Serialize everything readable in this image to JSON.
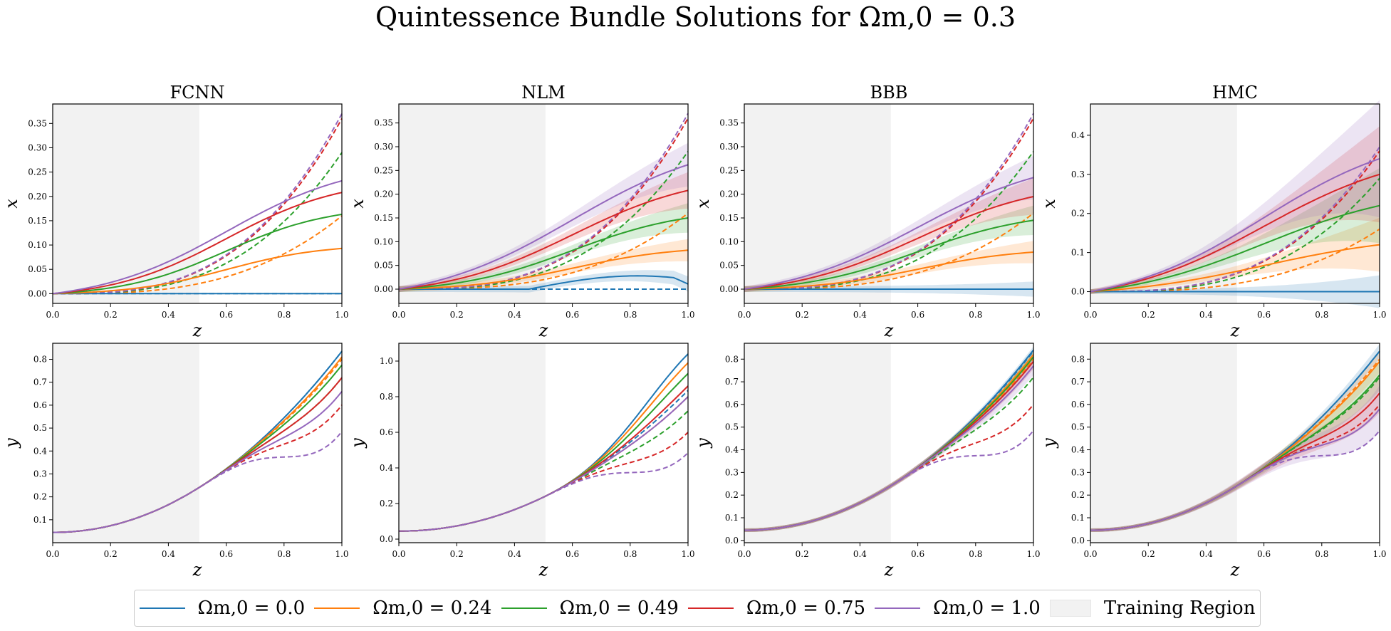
{
  "title": "Quintessence Bundle Solutions for Ω_{m,0} = 0.3",
  "title_display": "Quintessence Bundle Solutions for Ωm,0 = 0.3",
  "colors": {
    "s0": "#1f77b4",
    "s1": "#ff7f0e",
    "s2": "#2ca02c",
    "s3": "#d62728",
    "s4": "#9467bd",
    "training": "#f2f2f2"
  },
  "legend": [
    {
      "label": "Ωm,0 = 0.0",
      "color": "#1f77b4",
      "kind": "line"
    },
    {
      "label": "Ωm,0 = 0.24",
      "color": "#ff7f0e",
      "kind": "line"
    },
    {
      "label": "Ωm,0 = 0.49",
      "color": "#2ca02c",
      "kind": "line"
    },
    {
      "label": "Ωm,0 = 0.75",
      "color": "#d62728",
      "kind": "line"
    },
    {
      "label": "Ωm,0 = 1.0",
      "color": "#9467bd",
      "kind": "line"
    },
    {
      "label": "Training Region",
      "color": "#f2f2f2",
      "kind": "patch"
    }
  ],
  "chart_data": [
    {
      "type": "line",
      "title": "FCNN",
      "xlabel": "z",
      "ylabel": "x",
      "xlim": [
        0,
        1
      ],
      "ylim": [
        -0.02,
        0.39
      ],
      "training_region": [
        0,
        0.5
      ],
      "bands": false,
      "yticks": [
        0.0,
        0.05,
        0.1,
        0.15,
        0.2,
        0.25,
        0.3,
        0.35
      ],
      "solid_end": [
        0.0,
        0.093,
        0.163,
        0.208,
        0.232
      ],
      "solid_k": [
        0,
        6,
        5.5,
        5,
        4.5
      ],
      "dashed_end": [
        0.0,
        0.16,
        0.29,
        0.36,
        0.37
      ]
    },
    {
      "type": "line",
      "title": "NLM",
      "xlabel": "z",
      "ylabel": "x",
      "xlim": [
        0,
        1
      ],
      "ylim": [
        -0.03,
        0.39
      ],
      "training_region": [
        0,
        0.5
      ],
      "bands": true,
      "yticks": [
        0.0,
        0.05,
        0.1,
        0.15,
        0.2,
        0.25,
        0.3,
        0.35
      ],
      "solid_end": [
        0.015,
        0.082,
        0.15,
        0.208,
        0.262
      ],
      "solid_k": [
        5,
        5.5,
        5,
        4.5,
        4
      ],
      "dashed_end": [
        0.0,
        0.16,
        0.29,
        0.36,
        0.37
      ]
    },
    {
      "type": "line",
      "title": "BBB",
      "xlabel": "z",
      "ylabel": "x",
      "xlim": [
        0,
        1
      ],
      "ylim": [
        -0.03,
        0.39
      ],
      "training_region": [
        0,
        0.5
      ],
      "bands": true,
      "yticks": [
        0.0,
        0.05,
        0.1,
        0.15,
        0.2,
        0.25,
        0.3,
        0.35
      ],
      "solid_end": [
        0.0,
        0.078,
        0.145,
        0.195,
        0.235
      ],
      "solid_k": [
        0,
        5.5,
        5,
        4.5,
        4.2
      ],
      "dashed_end": [
        0.0,
        0.16,
        0.29,
        0.36,
        0.37
      ]
    },
    {
      "type": "line",
      "title": "HMC",
      "xlabel": "z",
      "ylabel": "x",
      "xlim": [
        0,
        1
      ],
      "ylim": [
        -0.03,
        0.48
      ],
      "training_region": [
        0,
        0.5
      ],
      "bands": true,
      "yticks": [
        0.0,
        0.1,
        0.2,
        0.3,
        0.4
      ],
      "solid_end": [
        0.0,
        0.12,
        0.22,
        0.3,
        0.34
      ],
      "solid_k": [
        0,
        4,
        4,
        4,
        4
      ],
      "dashed_end": [
        0.0,
        0.16,
        0.29,
        0.36,
        0.37
      ]
    },
    {
      "type": "line",
      "title": "",
      "xlabel": "z",
      "ylabel": "y",
      "xlim": [
        0,
        1
      ],
      "ylim": [
        0.0,
        0.87
      ],
      "training_region": [
        0,
        0.5
      ],
      "bands": false,
      "yticks": [
        0.1,
        0.2,
        0.3,
        0.4,
        0.5,
        0.6,
        0.7,
        0.8
      ],
      "solid_end": [
        0.835,
        0.81,
        0.775,
        0.72,
        0.66
      ],
      "dashed_end": [
        0.835,
        0.8,
        0.72,
        0.6,
        0.485
      ]
    },
    {
      "type": "line",
      "title": "",
      "xlabel": "z",
      "ylabel": "y",
      "xlim": [
        0,
        1
      ],
      "ylim": [
        -0.02,
        1.1
      ],
      "training_region": [
        0,
        0.5
      ],
      "bands": false,
      "yticks": [
        0.0,
        0.2,
        0.4,
        0.6,
        0.8,
        1.0
      ],
      "solid_end": [
        1.04,
        0.99,
        0.93,
        0.86,
        0.8
      ],
      "dashed_end": [
        0.835,
        0.8,
        0.72,
        0.6,
        0.485
      ]
    },
    {
      "type": "line",
      "title": "",
      "xlabel": "z",
      "ylabel": "y",
      "xlim": [
        0,
        1
      ],
      "ylim": [
        -0.01,
        0.87
      ],
      "training_region": [
        0,
        0.5
      ],
      "bands": true,
      "yticks": [
        0.0,
        0.1,
        0.2,
        0.3,
        0.4,
        0.5,
        0.6,
        0.7,
        0.8
      ],
      "solid_end": [
        0.84,
        0.82,
        0.81,
        0.79,
        0.77
      ],
      "dashed_end": [
        0.835,
        0.8,
        0.72,
        0.6,
        0.485
      ]
    },
    {
      "type": "line",
      "title": "",
      "xlabel": "z",
      "ylabel": "y",
      "xlim": [
        0,
        1
      ],
      "ylim": [
        -0.01,
        0.87
      ],
      "training_region": [
        0,
        0.5
      ],
      "bands": true,
      "yticks": [
        0.0,
        0.1,
        0.2,
        0.3,
        0.4,
        0.5,
        0.6,
        0.7,
        0.8
      ],
      "solid_end": [
        0.835,
        0.79,
        0.73,
        0.65,
        0.58
      ],
      "dashed_end": [
        0.835,
        0.8,
        0.72,
        0.6,
        0.485
      ]
    }
  ]
}
